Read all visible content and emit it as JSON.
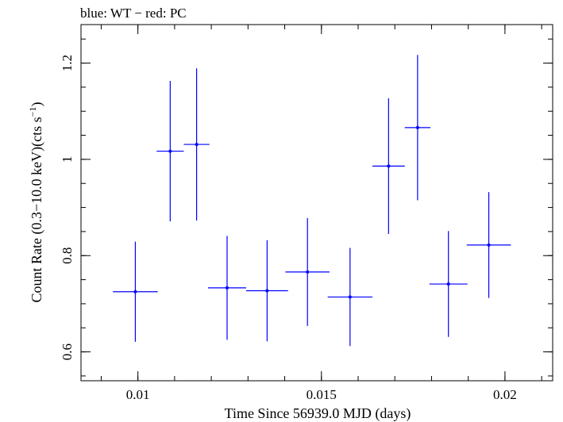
{
  "header": {
    "legend_text": "blue: WT − red: PC"
  },
  "chart_data": {
    "type": "scatter",
    "title": "",
    "xlabel": "Time Since 56939.0 MJD (days)",
    "ylabel_main": "Count Rate (0.3−10.0 keV)(cts s",
    "ylabel_sup": "−1",
    "ylabel_close": ")",
    "xlim": [
      0.00845,
      0.0213
    ],
    "ylim": [
      0.54,
      1.28
    ],
    "xticks": [
      0.01,
      0.015,
      0.02
    ],
    "xtick_labels": [
      "0.01",
      "0.015",
      "0.02"
    ],
    "yticks": [
      0.6,
      0.8,
      1.0,
      1.2
    ],
    "ytick_labels": [
      "0.6",
      "0.8",
      "1",
      "1.2"
    ],
    "x_minor_step": 0.001,
    "y_minor_step": 0.05,
    "grid": false,
    "series": [
      {
        "name": "WT",
        "color": "#0000ff",
        "points": [
          {
            "x": 0.00993,
            "y": 0.725,
            "xerr": 0.00061,
            "yerr_low": 0.104,
            "yerr_high": 0.104
          },
          {
            "x": 0.01088,
            "y": 1.017,
            "xerr": 0.00037,
            "yerr_low": 0.146,
            "yerr_high": 0.146
          },
          {
            "x": 0.0116,
            "y": 1.031,
            "xerr": 0.00035,
            "yerr_low": 0.158,
            "yerr_high": 0.158
          },
          {
            "x": 0.01243,
            "y": 0.733,
            "xerr": 0.00052,
            "yerr_low": 0.108,
            "yerr_high": 0.108
          },
          {
            "x": 0.01352,
            "y": 0.727,
            "xerr": 0.00057,
            "yerr_low": 0.105,
            "yerr_high": 0.105
          },
          {
            "x": 0.01462,
            "y": 0.766,
            "xerr": 0.0006,
            "yerr_low": 0.112,
            "yerr_high": 0.112
          },
          {
            "x": 0.01578,
            "y": 0.714,
            "xerr": 0.00061,
            "yerr_low": 0.102,
            "yerr_high": 0.102
          },
          {
            "x": 0.01683,
            "y": 0.986,
            "xerr": 0.00044,
            "yerr_low": 0.141,
            "yerr_high": 0.141
          },
          {
            "x": 0.01762,
            "y": 1.066,
            "xerr": 0.00035,
            "yerr_low": 0.151,
            "yerr_high": 0.151
          },
          {
            "x": 0.01846,
            "y": 0.741,
            "xerr": 0.00052,
            "yerr_low": 0.11,
            "yerr_high": 0.11
          },
          {
            "x": 0.01956,
            "y": 0.822,
            "xerr": 0.0006,
            "yerr_low": 0.11,
            "yerr_high": 0.11
          }
        ]
      }
    ]
  }
}
